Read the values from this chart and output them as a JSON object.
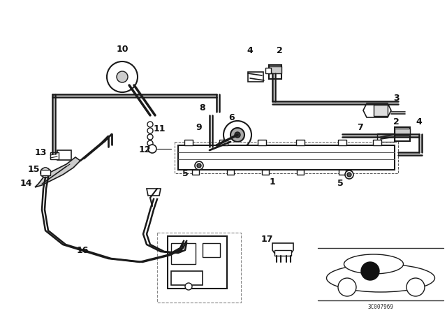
{
  "bg_color": "#ffffff",
  "part_code": "3C007969",
  "fig_w": 6.4,
  "fig_h": 4.48,
  "dpi": 100
}
